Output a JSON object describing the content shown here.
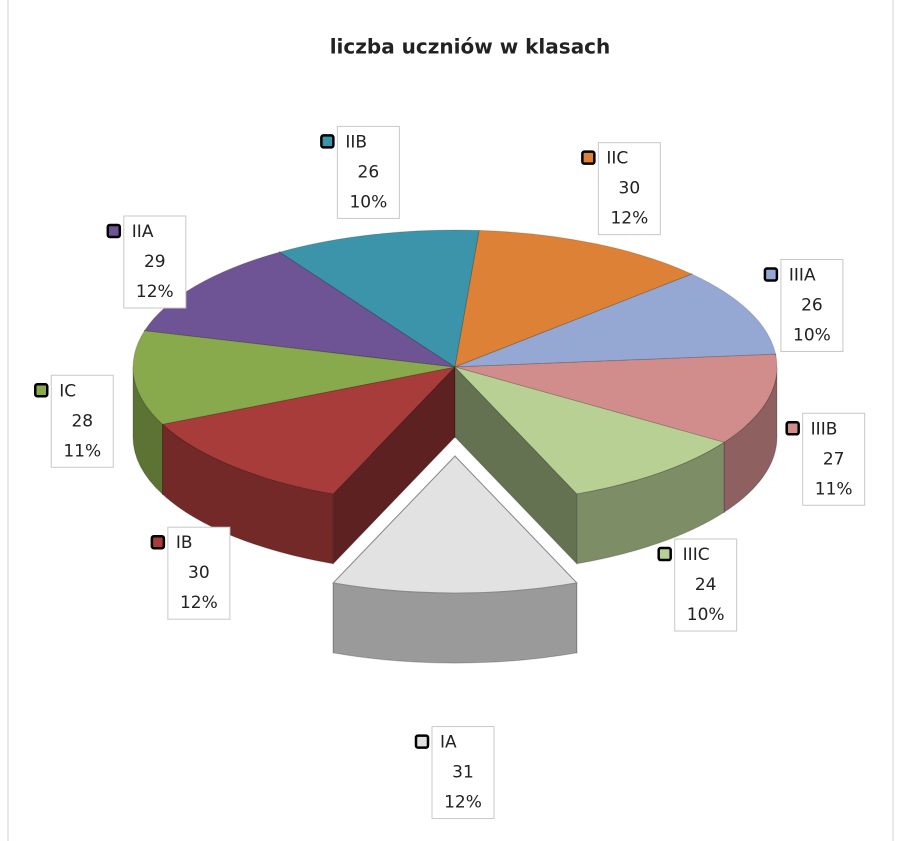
{
  "chart_data": {
    "type": "pie",
    "title": "liczba uczniów w klasach",
    "categories": [
      "IA",
      "IB",
      "IC",
      "IIA",
      "IIB",
      "IIC",
      "IIIA",
      "IIIB",
      "IIIC"
    ],
    "values": [
      31,
      30,
      28,
      29,
      26,
      30,
      26,
      27,
      24
    ],
    "percent_labels": [
      "12%",
      "12%",
      "11%",
      "12%",
      "10%",
      "12%",
      "10%",
      "11%",
      "10%"
    ],
    "colors": [
      "#e2e2e2",
      "#a83c3a",
      "#88a94c",
      "#6e5494",
      "#3c94aa",
      "#dc8136",
      "#94a8d3",
      "#d18d8c",
      "#b8d094"
    ],
    "exploded": "IA",
    "three_d": true
  }
}
